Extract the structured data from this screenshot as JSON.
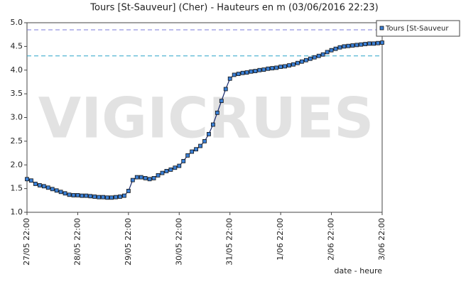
{
  "chart_data": {
    "type": "line",
    "title": "Tours [St-Sauveur] (Cher) - Hauteurs en m (03/06/2016 22:23)",
    "watermark": "VIGICRUES",
    "x_label": "date - heure",
    "categories": [
      "27/05 22:00",
      null,
      null,
      null,
      null,
      null,
      null,
      null,
      null,
      null,
      null,
      null,
      "28/05 22:00",
      null,
      null,
      null,
      null,
      null,
      null,
      null,
      null,
      null,
      null,
      null,
      "29/05 22:00",
      null,
      null,
      null,
      null,
      null,
      null,
      null,
      null,
      null,
      null,
      null,
      "30/05 22:00",
      null,
      null,
      null,
      null,
      null,
      null,
      null,
      null,
      null,
      null,
      null,
      "31/05 22:00",
      null,
      null,
      null,
      null,
      null,
      null,
      null,
      null,
      null,
      null,
      null,
      "1/06 22:00",
      null,
      null,
      null,
      null,
      null,
      null,
      null,
      null,
      null,
      null,
      null,
      "2/06 22:00",
      null,
      null,
      null,
      null,
      null,
      null,
      null,
      null,
      null,
      null,
      null,
      "3/06 22:00"
    ],
    "series": [
      {
        "name": "Tours [St-Sauveur",
        "color": "#3a7fd5",
        "line_color": "#1a2a6c",
        "values": [
          1.7,
          1.67,
          1.6,
          1.57,
          1.55,
          1.52,
          1.49,
          1.46,
          1.43,
          1.4,
          1.37,
          1.36,
          1.36,
          1.35,
          1.35,
          1.34,
          1.33,
          1.32,
          1.32,
          1.31,
          1.31,
          1.32,
          1.33,
          1.35,
          1.45,
          1.68,
          1.74,
          1.74,
          1.72,
          1.7,
          1.72,
          1.78,
          1.83,
          1.87,
          1.9,
          1.94,
          1.98,
          2.08,
          2.2,
          2.28,
          2.33,
          2.4,
          2.5,
          2.65,
          2.85,
          3.1,
          3.35,
          3.6,
          3.82,
          3.9,
          3.92,
          3.94,
          3.95,
          3.97,
          3.98,
          4.0,
          4.01,
          4.03,
          4.04,
          4.05,
          4.07,
          4.08,
          4.1,
          4.12,
          4.15,
          4.18,
          4.21,
          4.24,
          4.27,
          4.3,
          4.33,
          4.38,
          4.42,
          4.45,
          4.48,
          4.5,
          4.51,
          4.52,
          4.53,
          4.54,
          4.55,
          4.56,
          4.56,
          4.57,
          4.58
        ]
      }
    ],
    "reference_lines": [
      {
        "value": 4.85,
        "color": "#7b7bd8"
      },
      {
        "value": 4.3,
        "color": "#2aa3c8"
      }
    ],
    "ylim": [
      1,
      5
    ],
    "yticks": [
      {
        "value": 1,
        "label": "1.0"
      },
      1.5,
      {
        "value": 2,
        "label": "2.0"
      },
      2.5,
      {
        "value": 3,
        "label": "3.0"
      },
      3.5,
      {
        "value": 4,
        "label": "4.0"
      },
      4.5,
      {
        "value": 5,
        "label": "5.0"
      }
    ]
  }
}
